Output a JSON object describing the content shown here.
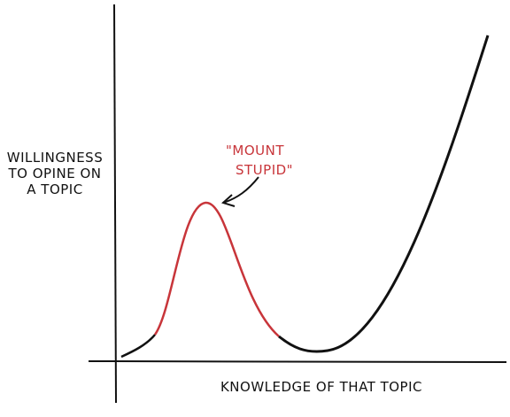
{
  "y_axis_label": [
    "WILLINGNESS",
    "TO OPINE ON",
    "A TOPIC"
  ],
  "x_axis_label": "KNOWLEDGE OF THAT TOPIC",
  "annotation": [
    "\"MOUNT",
    "STUPID\""
  ]
}
